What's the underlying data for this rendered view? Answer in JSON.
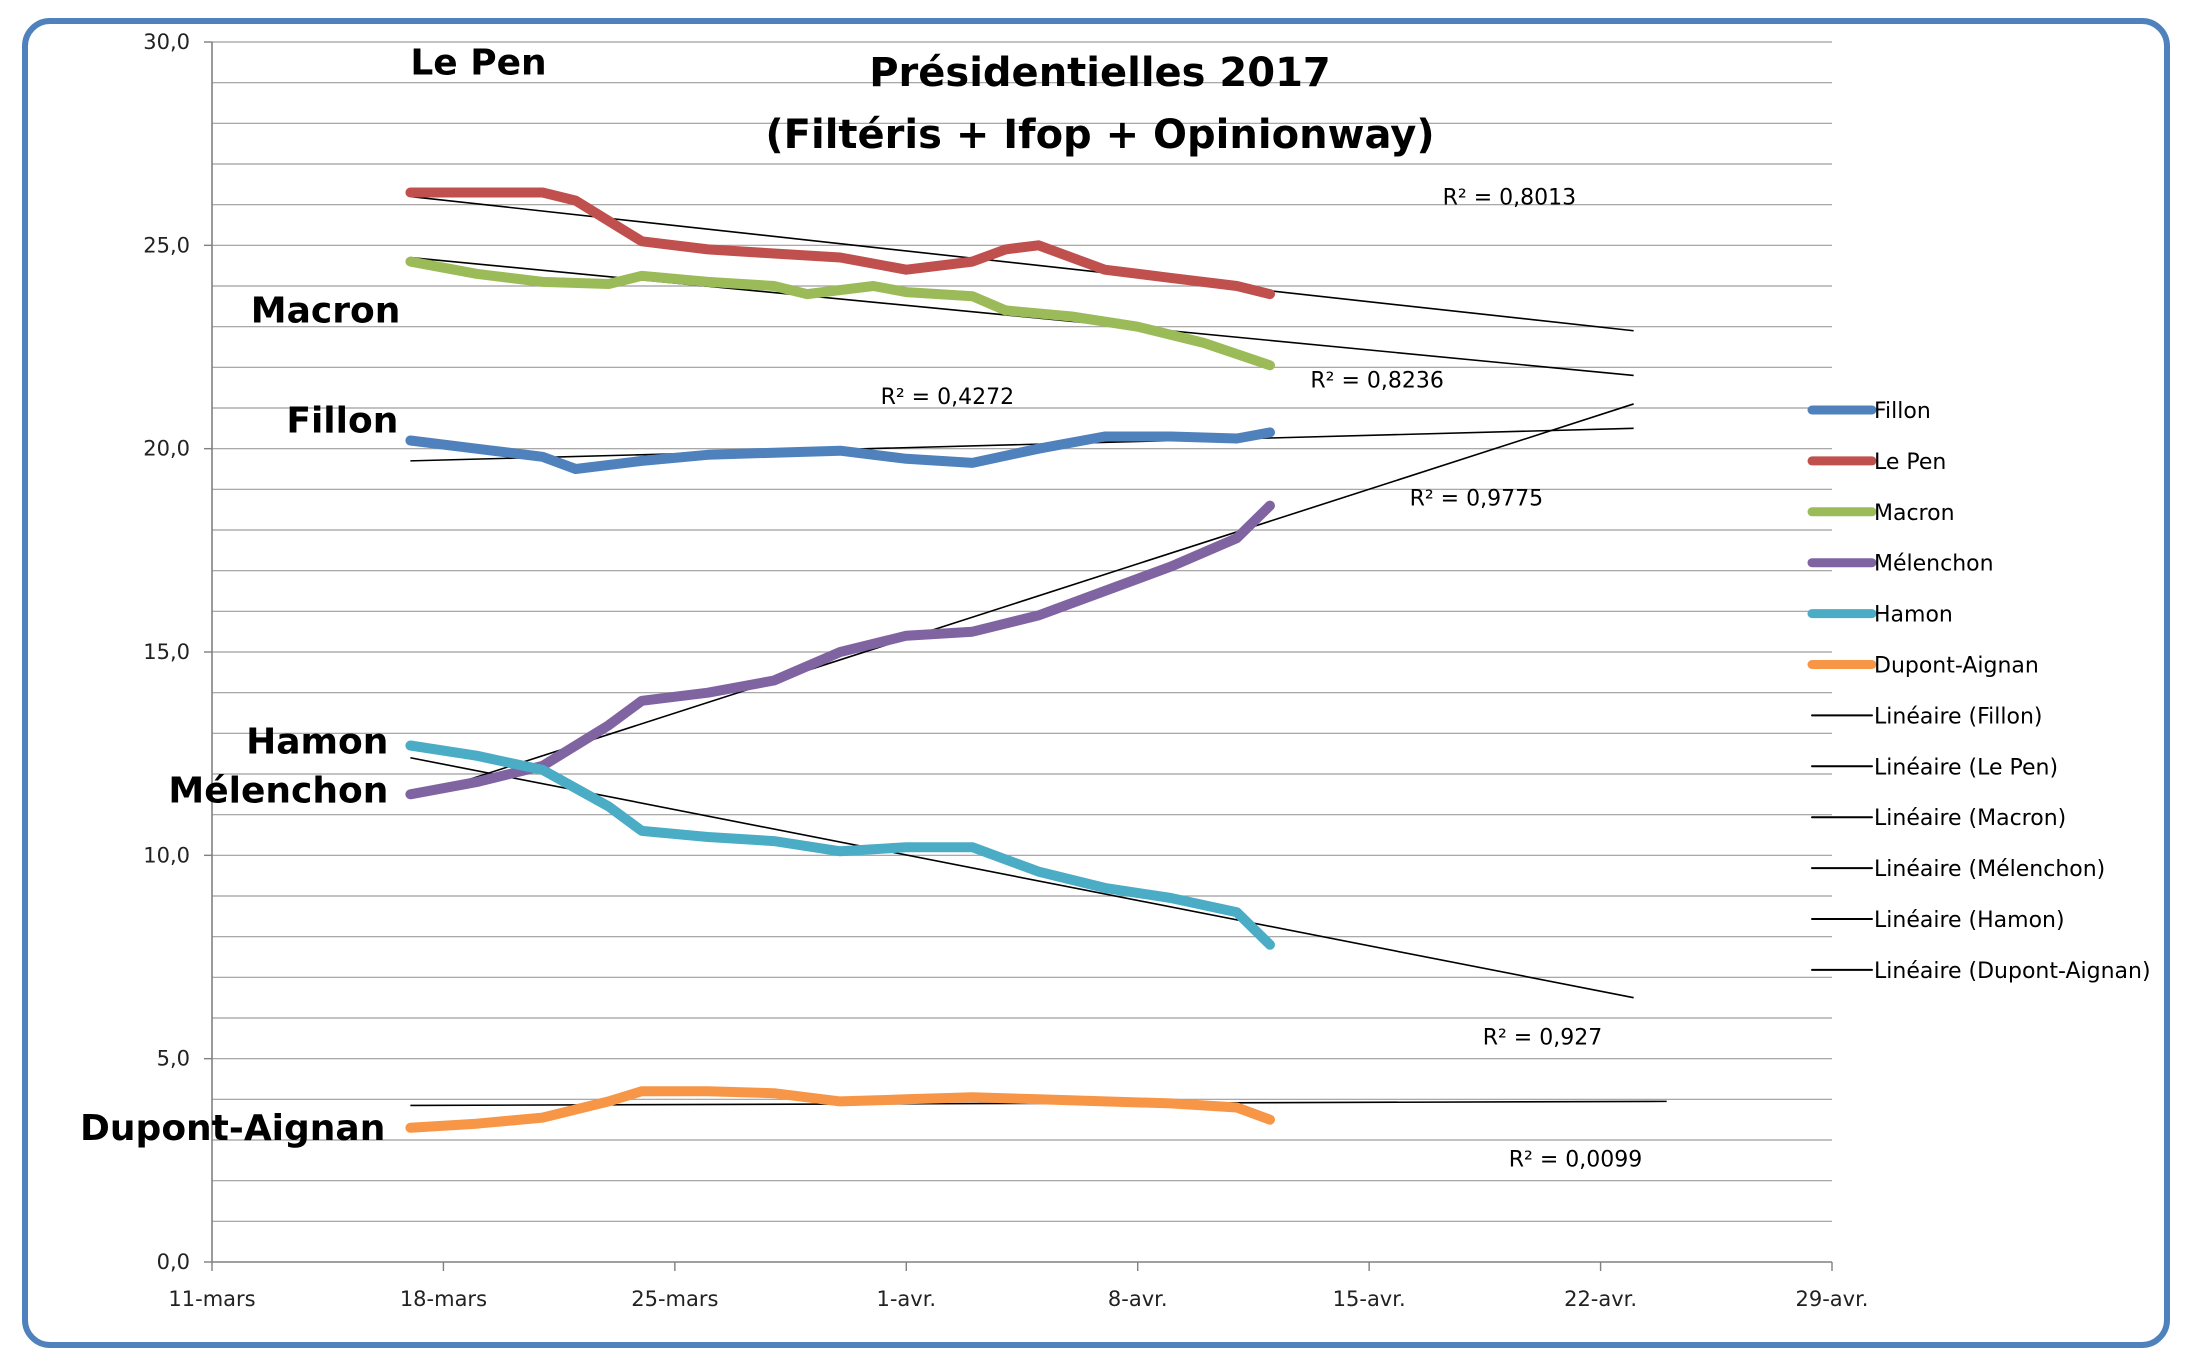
{
  "chart_data": {
    "type": "line",
    "title": "Présidentielles 2017",
    "subtitle": "(Filtéris + Ifop + Opinionway)",
    "xlabel": "",
    "ylabel": "",
    "ylim": [
      0,
      30
    ],
    "y_ticks": [
      "0,0",
      "5,0",
      "10,0",
      "15,0",
      "20,0",
      "25,0",
      "30,0"
    ],
    "x_range": [
      "2017-03-11",
      "2017-04-29"
    ],
    "x_ticks": [
      "11-mars",
      "18-mars",
      "25-mars",
      "1-avr.",
      "8-avr.",
      "15-avr.",
      "22-avr.",
      "29-avr."
    ],
    "grid": "horizontal",
    "legend_position": "right",
    "series": [
      {
        "name": "Fillon",
        "color": "#4f81bd",
        "x": [
          "2017-03-17",
          "2017-03-19",
          "2017-03-21",
          "2017-03-22",
          "2017-03-24",
          "2017-03-26",
          "2017-03-28",
          "2017-03-30",
          "2017-04-01",
          "2017-04-03",
          "2017-04-05",
          "2017-04-07",
          "2017-04-09",
          "2017-04-11",
          "2017-04-12"
        ],
        "values": [
          20.2,
          20.0,
          19.8,
          19.5,
          19.7,
          19.85,
          19.9,
          19.95,
          19.75,
          19.65,
          20.0,
          20.3,
          20.3,
          20.25,
          20.4
        ]
      },
      {
        "name": "Le Pen",
        "color": "#c0504d",
        "x": [
          "2017-03-17",
          "2017-03-19",
          "2017-03-21",
          "2017-03-22",
          "2017-03-24",
          "2017-03-26",
          "2017-03-28",
          "2017-03-30",
          "2017-04-01",
          "2017-04-03",
          "2017-04-04",
          "2017-04-05",
          "2017-04-07",
          "2017-04-09",
          "2017-04-11",
          "2017-04-12"
        ],
        "values": [
          26.3,
          26.3,
          26.3,
          26.1,
          25.1,
          24.9,
          24.8,
          24.7,
          24.4,
          24.6,
          24.9,
          25.0,
          24.4,
          24.2,
          24.0,
          23.8
        ]
      },
      {
        "name": "Macron",
        "color": "#9bbb59",
        "x": [
          "2017-03-17",
          "2017-03-19",
          "2017-03-21",
          "2017-03-23",
          "2017-03-24",
          "2017-03-26",
          "2017-03-28",
          "2017-03-29",
          "2017-03-31",
          "2017-04-01",
          "2017-04-03",
          "2017-04-04",
          "2017-04-06",
          "2017-04-08",
          "2017-04-10",
          "2017-04-12"
        ],
        "values": [
          24.6,
          24.3,
          24.1,
          24.05,
          24.25,
          24.1,
          24.0,
          23.8,
          24.0,
          23.85,
          23.75,
          23.4,
          23.25,
          23.0,
          22.6,
          22.05
        ]
      },
      {
        "name": "Mélenchon",
        "color": "#8064a2",
        "x": [
          "2017-03-17",
          "2017-03-19",
          "2017-03-21",
          "2017-03-23",
          "2017-03-24",
          "2017-03-26",
          "2017-03-28",
          "2017-03-30",
          "2017-04-01",
          "2017-04-03",
          "2017-04-05",
          "2017-04-07",
          "2017-04-09",
          "2017-04-11",
          "2017-04-12"
        ],
        "values": [
          11.5,
          11.8,
          12.2,
          13.2,
          13.8,
          14.0,
          14.3,
          15.0,
          15.4,
          15.5,
          15.9,
          16.5,
          17.1,
          17.8,
          18.6
        ]
      },
      {
        "name": "Hamon",
        "color": "#4bacc6",
        "x": [
          "2017-03-17",
          "2017-03-19",
          "2017-03-21",
          "2017-03-23",
          "2017-03-24",
          "2017-03-26",
          "2017-03-28",
          "2017-03-30",
          "2017-04-01",
          "2017-04-03",
          "2017-04-05",
          "2017-04-07",
          "2017-04-09",
          "2017-04-11",
          "2017-04-12"
        ],
        "values": [
          12.7,
          12.45,
          12.1,
          11.2,
          10.6,
          10.45,
          10.35,
          10.1,
          10.2,
          10.2,
          9.6,
          9.2,
          8.95,
          8.6,
          7.8
        ]
      },
      {
        "name": "Dupont-Aignan",
        "color": "#f79646",
        "x": [
          "2017-03-17",
          "2017-03-19",
          "2017-03-21",
          "2017-03-23",
          "2017-03-24",
          "2017-03-26",
          "2017-03-28",
          "2017-03-30",
          "2017-04-01",
          "2017-04-03",
          "2017-04-05",
          "2017-04-07",
          "2017-04-09",
          "2017-04-11",
          "2017-04-12"
        ],
        "values": [
          3.3,
          3.4,
          3.55,
          3.95,
          4.2,
          4.2,
          4.15,
          3.95,
          4.0,
          4.05,
          4.0,
          3.95,
          3.9,
          3.8,
          3.5
        ]
      }
    ],
    "trendlines": [
      {
        "name": "Linéaire (Fillon)",
        "x": [
          "2017-03-17",
          "2017-04-23"
        ],
        "values": [
          19.7,
          20.5
        ],
        "r2": "R² = 0,4272"
      },
      {
        "name": "Linéaire (Le Pen)",
        "x": [
          "2017-03-17",
          "2017-04-23"
        ],
        "values": [
          26.2,
          22.9
        ],
        "r2": "R² = 0,8013"
      },
      {
        "name": "Linéaire (Macron)",
        "x": [
          "2017-03-17",
          "2017-04-23"
        ],
        "values": [
          24.7,
          21.8
        ],
        "r2": "R² = 0,8236"
      },
      {
        "name": "Linéaire (Mélenchon)",
        "x": [
          "2017-03-17",
          "2017-04-23"
        ],
        "values": [
          11.4,
          21.1
        ],
        "r2": "R² = 0,9775"
      },
      {
        "name": "Linéaire (Hamon)",
        "x": [
          "2017-03-17",
          "2017-04-23"
        ],
        "values": [
          12.4,
          6.5
        ],
        "r2": "R² = 0,927"
      },
      {
        "name": "Linéaire (Dupont-Aignan)",
        "x": [
          "2017-03-17",
          "2017-04-24"
        ],
        "values": [
          3.85,
          3.95
        ],
        "r2": "R² = 0,0099"
      }
    ],
    "candidate_labels": [
      "Le Pen",
      "Macron",
      "Fillon",
      "Hamon",
      "Mélenchon",
      "Dupont-Aignan"
    ]
  }
}
